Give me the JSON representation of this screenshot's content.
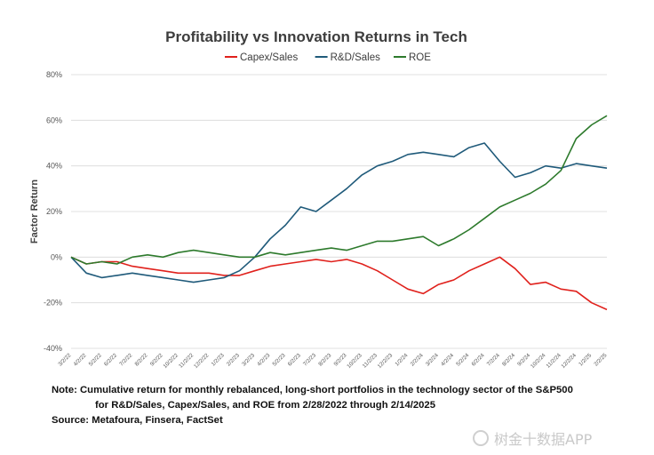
{
  "chart_data": {
    "type": "line",
    "title": "Profitability vs Innovation Returns in Tech",
    "ylabel": "Factor Return",
    "xlabel": "",
    "ylim": [
      -40,
      80
    ],
    "y_ticks": [
      "80%",
      "60%",
      "40%",
      "20%",
      "0%",
      "-20%",
      "-40%"
    ],
    "y_tick_values": [
      80,
      60,
      40,
      20,
      0,
      -20,
      -40
    ],
    "grid": "horizontal",
    "legend_position": "top",
    "x": [
      "3/2/22",
      "4/2/22",
      "5/2/22",
      "6/2/22",
      "7/2/22",
      "8/2/22",
      "9/2/22",
      "10/2/22",
      "11/2/22",
      "12/2/22",
      "1/2/23",
      "2/2/23",
      "3/2/23",
      "4/2/23",
      "5/2/23",
      "6/2/23",
      "7/2/23",
      "8/2/23",
      "9/2/23",
      "10/2/23",
      "11/2/23",
      "12/2/23",
      "1/2/24",
      "2/2/24",
      "3/2/24",
      "4/2/24",
      "5/2/24",
      "6/2/24",
      "7/2/24",
      "8/2/24",
      "9/2/24",
      "10/2/24",
      "11/2/24",
      "12/2/24",
      "1/2/25",
      "2/2/25"
    ],
    "x_tick_labels": [
      "3/2/22",
      "4/2/22",
      "5/2/22",
      "6/2/22",
      "7/2/22",
      "8/2/22",
      "9/2/22",
      "10/2/22",
      "11/2/22",
      "12/2/22",
      "1/2/23",
      "2/2/23",
      "3/2/23",
      "4/2/23",
      "5/2/23",
      "6/2/23",
      "7/2/23",
      "8/2/23",
      "9/2/23",
      "10/2/23",
      "11/2/23",
      "12/2/23",
      "1/2/24",
      "2/2/24",
      "3/2/24",
      "4/2/24",
      "5/2/24",
      "6/2/24",
      "7/2/24",
      "8/2/24",
      "9/2/24",
      "10/2/24",
      "11/2/24",
      "12/2/24",
      "1/2/25",
      "2/2/25"
    ],
    "series": [
      {
        "name": "Capex/Sales",
        "color": "#e0211c",
        "values": [
          0,
          -3,
          -2,
          -2,
          -4,
          -5,
          -6,
          -7,
          -7,
          -7,
          -8,
          -8,
          -6,
          -4,
          -3,
          -2,
          -1,
          -2,
          -1,
          -3,
          -6,
          -10,
          -14,
          -16,
          -12,
          -10,
          -6,
          -3,
          0,
          -5,
          -12,
          -11,
          -14,
          -15,
          -20,
          -23
        ]
      },
      {
        "name": "R&D/Sales",
        "color": "#1f5a7a",
        "values": [
          0,
          -7,
          -9,
          -8,
          -7,
          -8,
          -9,
          -10,
          -11,
          -10,
          -9,
          -6,
          0,
          8,
          14,
          22,
          20,
          25,
          30,
          36,
          40,
          42,
          45,
          46,
          45,
          44,
          48,
          50,
          42,
          35,
          37,
          40,
          39,
          41,
          40,
          39
        ]
      },
      {
        "name": "ROE",
        "color": "#2d7a2c",
        "values": [
          0,
          -3,
          -2,
          -3,
          0,
          1,
          0,
          2,
          3,
          2,
          1,
          0,
          0,
          2,
          1,
          2,
          3,
          4,
          3,
          5,
          7,
          7,
          8,
          9,
          5,
          8,
          12,
          17,
          22,
          25,
          28,
          32,
          38,
          52,
          58,
          62
        ]
      }
    ]
  },
  "notes": {
    "line1": "Note:  Cumulative return for monthly rebalanced, long-short portfolios  in the technology sector of the S&P500",
    "line2": "for  R&D/Sales, Capex/Sales, and ROE from 2/28/2022 through 2/14/2025",
    "line3": "Source: Metafoura, Finsera, FactSet"
  },
  "watermark": "树金十数据APP"
}
